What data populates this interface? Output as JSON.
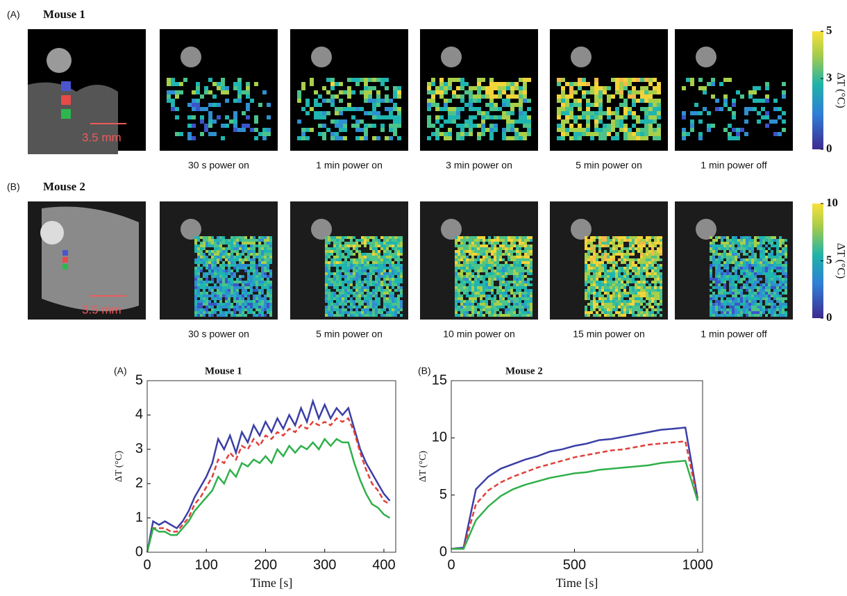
{
  "figure": {
    "panels": [
      {
        "label": "(A)",
        "title": "Mouse 1",
        "scale_bar": "3.5 mm",
        "captions": [
          "30 s power on",
          "1 min power on",
          "3 min power on",
          "5 min power on",
          "1 min power off"
        ],
        "colorbar": {
          "label": "ΔT (°C)",
          "lim": [
            0,
            5
          ],
          "ticks": [
            0,
            3,
            5
          ]
        }
      },
      {
        "label": "(B)",
        "title": "Mouse 2",
        "scale_bar": "3.5 mm",
        "captions": [
          "30 s power on",
          "5 min power on",
          "10 min power on",
          "15 min power on",
          "1 min power off"
        ],
        "colorbar": {
          "label": "ΔT (°C)",
          "lim": [
            0,
            10
          ],
          "ticks": [
            0,
            5,
            10
          ]
        }
      }
    ]
  },
  "chart_data": [
    {
      "type": "line",
      "panel_label": "(A)",
      "title": "Mouse 1",
      "x_label": "Time [s]",
      "y_label": "ΔT (°C)",
      "x": [
        0,
        10,
        20,
        30,
        40,
        50,
        60,
        70,
        80,
        90,
        100,
        110,
        120,
        130,
        140,
        150,
        160,
        170,
        180,
        190,
        200,
        210,
        220,
        230,
        240,
        250,
        260,
        270,
        280,
        290,
        300,
        310,
        320,
        330,
        340,
        350,
        360,
        370,
        380,
        390,
        400,
        410
      ],
      "xlim": [
        0,
        420
      ],
      "xticks": [
        0,
        100,
        200,
        300,
        400
      ],
      "ylim": [
        0,
        5
      ],
      "yticks": [
        0,
        1,
        2,
        3,
        4,
        5
      ],
      "series": [
        {
          "color": "#3b3fa6",
          "style": "solid",
          "values": [
            0,
            0.9,
            0.8,
            0.9,
            0.8,
            0.7,
            0.9,
            1.2,
            1.6,
            1.9,
            2.2,
            2.6,
            3.3,
            3.0,
            3.4,
            2.9,
            3.5,
            3.2,
            3.7,
            3.4,
            3.8,
            3.5,
            3.9,
            3.6,
            4.0,
            3.7,
            4.2,
            3.8,
            4.4,
            3.9,
            4.3,
            3.9,
            4.2,
            4.0,
            4.2,
            3.6,
            3.0,
            2.6,
            2.3,
            2.0,
            1.7,
            1.5
          ]
        },
        {
          "color": "#e0403a",
          "style": "dashed",
          "values": [
            0,
            0.7,
            0.7,
            0.7,
            0.6,
            0.6,
            0.8,
            1.0,
            1.4,
            1.6,
            1.9,
            2.2,
            2.7,
            2.6,
            2.9,
            2.7,
            3.1,
            3.0,
            3.3,
            3.1,
            3.4,
            3.3,
            3.5,
            3.4,
            3.6,
            3.5,
            3.7,
            3.6,
            3.8,
            3.7,
            3.8,
            3.7,
            3.9,
            3.8,
            3.9,
            3.5,
            2.9,
            2.4,
            2.0,
            1.8,
            1.5,
            1.4
          ]
        },
        {
          "color": "#2fb04a",
          "style": "solid",
          "values": [
            0,
            0.7,
            0.6,
            0.6,
            0.5,
            0.5,
            0.7,
            0.9,
            1.2,
            1.4,
            1.6,
            1.8,
            2.2,
            2.0,
            2.4,
            2.2,
            2.6,
            2.5,
            2.7,
            2.6,
            2.8,
            2.6,
            3.0,
            2.8,
            3.1,
            2.9,
            3.1,
            3.0,
            3.2,
            3.0,
            3.3,
            3.1,
            3.3,
            3.2,
            3.2,
            2.6,
            2.1,
            1.7,
            1.4,
            1.3,
            1.1,
            1.0
          ]
        }
      ]
    },
    {
      "type": "line",
      "panel_label": "(B)",
      "title": "Mouse 2",
      "x_label": "Time [s]",
      "y_label": "ΔT (°C)",
      "x": [
        0,
        50,
        100,
        150,
        200,
        250,
        300,
        350,
        400,
        450,
        500,
        550,
        600,
        650,
        700,
        750,
        800,
        850,
        900,
        950,
        1000
      ],
      "xlim": [
        0,
        1020
      ],
      "xticks": [
        0,
        500,
        1000
      ],
      "ylim": [
        0,
        15
      ],
      "yticks": [
        0,
        5,
        10,
        15
      ],
      "series": [
        {
          "color": "#3b3fa6",
          "style": "solid",
          "values": [
            0.3,
            0.4,
            5.5,
            6.6,
            7.3,
            7.7,
            8.1,
            8.4,
            8.8,
            9.0,
            9.3,
            9.5,
            9.8,
            9.9,
            10.1,
            10.3,
            10.5,
            10.7,
            10.8,
            10.9,
            4.7
          ]
        },
        {
          "color": "#e0403a",
          "style": "dashed",
          "values": [
            0.3,
            0.3,
            4.2,
            5.4,
            6.1,
            6.6,
            7.0,
            7.4,
            7.7,
            8.0,
            8.3,
            8.5,
            8.7,
            8.9,
            9.0,
            9.2,
            9.4,
            9.5,
            9.6,
            9.7,
            4.6
          ]
        },
        {
          "color": "#2fb04a",
          "style": "solid",
          "values": [
            0.3,
            0.3,
            2.8,
            4.0,
            4.9,
            5.5,
            5.9,
            6.2,
            6.5,
            6.7,
            6.9,
            7.0,
            7.2,
            7.3,
            7.4,
            7.5,
            7.6,
            7.8,
            7.9,
            8.0,
            4.5
          ]
        }
      ]
    }
  ]
}
